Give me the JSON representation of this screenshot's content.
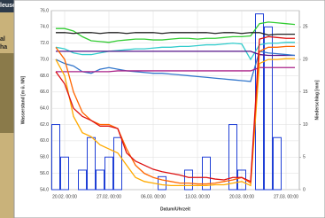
{
  "background": {
    "texts": [
      "leuse",
      "al",
      "ha"
    ]
  },
  "chart_data": {
    "type": "line",
    "y_label": "Wasserstand [m ü. NN]",
    "y2_label": "Niederschlag [mm]",
    "x_label": "Datum/Uhrzeit",
    "categories": [
      null,
      "20.02. 00:00",
      null,
      null,
      null,
      null,
      "27.02. 00:00",
      null,
      null,
      null,
      null,
      "06.03. 00:00",
      null,
      null,
      null,
      null,
      "13.03. 00:00",
      null,
      null,
      null,
      null,
      "20.03. 00:00",
      null,
      null,
      null,
      null,
      "27.03. 00:00",
      null
    ],
    "ylim": [
      54,
      76
    ],
    "yticks": [
      {
        "value": 54,
        "label": "54.0"
      },
      {
        "value": 56,
        "label": "56.0"
      },
      {
        "value": 58,
        "label": "58.0"
      },
      {
        "value": 60,
        "label": "60.0"
      },
      {
        "value": 62,
        "label": "62.0"
      },
      {
        "value": 64,
        "label": "64.0"
      },
      {
        "value": 66,
        "label": "66.0"
      },
      {
        "value": 68,
        "label": "68.0"
      },
      {
        "value": 70,
        "label": "70.0"
      },
      {
        "value": 72,
        "label": "72.0"
      },
      {
        "value": 74,
        "label": "74.0"
      },
      {
        "value": 76,
        "label": "76.0"
      }
    ],
    "y2lim": [
      0,
      27.5
    ],
    "y2ticks": [
      0,
      5,
      10,
      15,
      20,
      25
    ],
    "grid": true,
    "series": [
      {
        "color": "#1f3fd6",
        "type": "bar",
        "axis": "y2",
        "values": [
          10,
          5,
          0,
          3,
          8,
          3,
          5,
          8,
          0,
          0,
          0,
          0,
          2,
          0,
          0,
          3,
          0,
          5,
          0,
          0,
          10,
          3,
          0,
          27,
          25,
          8,
          0,
          0
        ]
      },
      {
        "color": "#33cc33",
        "values": [
          73.8,
          73.8,
          73.5,
          72.8,
          72.3,
          72.2,
          72.1,
          72.3,
          72.4,
          72.5,
          72.5,
          72.4,
          72.4,
          72.5,
          72.6,
          72.6,
          72.5,
          72.6,
          72.6,
          72.7,
          72.8,
          72.8,
          72.9,
          74.4,
          74.6,
          74.5,
          74.4,
          74.3
        ]
      },
      {
        "color": "#222222",
        "values": [
          73.3,
          73.3,
          73.2,
          73.3,
          73.3,
          73.2,
          73.3,
          73.3,
          73.2,
          73.3,
          73.3,
          73.3,
          73.2,
          73.3,
          73.3,
          73.3,
          73.3,
          73.3,
          73.2,
          73.3,
          73.3,
          73.2,
          73.3,
          73.3,
          73.0,
          73.1,
          73.1,
          73.1
        ]
      },
      {
        "color": "#33cccc",
        "values": [
          71.5,
          71.3,
          70.8,
          70.6,
          70.6,
          70.8,
          71.0,
          71.1,
          71.2,
          71.3,
          71.3,
          71.4,
          71.5,
          71.5,
          71.6,
          71.6,
          71.7,
          71.8,
          71.8,
          71.9,
          72.0,
          71.9,
          70.0,
          71.8,
          72.0,
          72.0,
          72.1,
          72.1
        ]
      },
      {
        "color": "#551188",
        "values": [
          71.0,
          71.0,
          71.0,
          71.0,
          71.0,
          71.0,
          71.0,
          71.0,
          71.0,
          71.0,
          71.0,
          71.0,
          71.0,
          71.0,
          71.0,
          71.0,
          71.0,
          71.0,
          71.0,
          71.0,
          71.0,
          71.0,
          71.0,
          70.6,
          70.5,
          70.5,
          70.5,
          70.5
        ]
      },
      {
        "color": "#3377cc",
        "values": [
          70.0,
          69.5,
          69.2,
          68.5,
          68.3,
          68.8,
          69.0,
          68.8,
          68.6,
          68.5,
          68.4,
          68.3,
          68.3,
          68.2,
          68.1,
          68.0,
          67.9,
          67.8,
          67.7,
          67.6,
          67.5,
          67.4,
          67.3,
          71.0,
          70.8,
          70.7,
          70.6,
          70.5
        ]
      },
      {
        "color": "#aa2288",
        "values": [
          68.5,
          68.5,
          68.5,
          68.5,
          68.5,
          68.5,
          68.5,
          68.6,
          68.6,
          68.6,
          68.6,
          68.6,
          68.6,
          68.6,
          68.6,
          68.6,
          68.6,
          68.6,
          68.6,
          68.6,
          68.6,
          68.6,
          68.6,
          69.0,
          69.0,
          69.0,
          69.0,
          69.0
        ]
      },
      {
        "color": "#ffaa00",
        "values": [
          70.0,
          68.0,
          63.0,
          61.0,
          60.5,
          59.5,
          59.0,
          58.5,
          57.0,
          55.5,
          55.0,
          54.8,
          54.6,
          54.5,
          54.5,
          54.5,
          54.5,
          54.5,
          54.6,
          54.6,
          54.8,
          55.0,
          54.5,
          69.5,
          70.0,
          70.0,
          70.1,
          70.1
        ]
      },
      {
        "color": "#ff6600",
        "values": [
          71.5,
          70.0,
          66.0,
          63.5,
          62.5,
          62.0,
          62.0,
          61.5,
          59.0,
          57.0,
          56.0,
          55.5,
          55.2,
          55.0,
          54.8,
          54.8,
          54.7,
          54.7,
          54.8,
          55.0,
          55.2,
          55.5,
          54.8,
          71.0,
          71.5,
          71.5,
          71.6,
          71.6
        ]
      },
      {
        "color": "#dd1111",
        "values": [
          68.5,
          67.0,
          64.0,
          63.0,
          62.5,
          61.8,
          61.8,
          61.5,
          58.5,
          57.5,
          57.0,
          56.5,
          56.2,
          56.0,
          55.8,
          55.5,
          55.5,
          55.5,
          55.3,
          55.2,
          55.5,
          55.5,
          55.0,
          72.5,
          72.8,
          72.7,
          72.6,
          72.6
        ]
      }
    ]
  }
}
